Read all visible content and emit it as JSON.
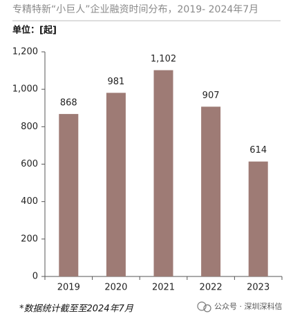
{
  "chart_data": {
    "type": "bar",
    "title": "专精特新“小巨人”企业融资时间分布，2019- 2024年7月",
    "unit_label": "单位：[起]",
    "categories": [
      "2019",
      "2020",
      "2021",
      "2022",
      "2023"
    ],
    "values": [
      868,
      981,
      1102,
      907,
      614
    ],
    "value_labels": [
      "868",
      "981",
      "1,102",
      "907",
      "614"
    ],
    "color": "#9e7b75",
    "ylim": [
      0,
      1200
    ],
    "yticks": [
      0,
      200,
      400,
      600,
      800,
      {
        "value": 1000,
        "label": "1,000"
      },
      {
        "value": 1200,
        "label": "1,200"
      }
    ],
    "grid": false,
    "footnote": "*数据统计截至至2024年7月",
    "watermark": "公众号 · 深圳深科信"
  }
}
